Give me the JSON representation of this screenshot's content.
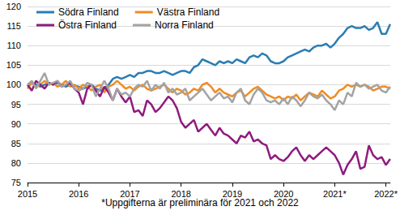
{
  "chart_data": {
    "type": "line",
    "annotation": "*Uppgifterna är preliminära för 2021 och 2022",
    "categories": [
      "2015",
      null,
      null,
      null,
      null,
      null,
      null,
      null,
      null,
      null,
      null,
      null,
      "2016",
      null,
      null,
      null,
      null,
      null,
      null,
      null,
      null,
      null,
      null,
      null,
      "2017",
      null,
      null,
      null,
      null,
      null,
      null,
      null,
      null,
      null,
      null,
      null,
      "2018",
      null,
      null,
      null,
      null,
      null,
      null,
      null,
      null,
      null,
      null,
      null,
      "2019",
      null,
      null,
      null,
      null,
      null,
      null,
      null,
      null,
      null,
      null,
      null,
      "2020",
      null,
      null,
      null,
      null,
      null,
      null,
      null,
      null,
      null,
      null,
      null,
      "2021*",
      null,
      null,
      null,
      null,
      null,
      null,
      null,
      null,
      null,
      null,
      null,
      "2022*",
      null
    ],
    "series": [
      {
        "name": "Södra Finland",
        "color": "#2a7db4",
        "values": [
          100,
          100.5,
          100,
          99.5,
          100,
          100.5,
          100,
          100.5,
          100,
          99.5,
          100,
          99.8,
          99.5,
          99,
          99.5,
          100,
          99,
          98.5,
          99,
          100,
          101.5,
          102,
          101.5,
          102,
          102.5,
          102,
          103,
          103,
          103.5,
          103.5,
          103,
          103,
          103.5,
          103,
          102.5,
          103,
          103.5,
          103.5,
          103,
          104.5,
          105,
          106.5,
          106,
          105.5,
          105,
          106,
          105.5,
          106,
          105.5,
          106.5,
          106,
          105.5,
          107,
          107.5,
          107,
          108,
          107.5,
          106,
          105.5,
          105.5,
          106,
          107,
          107.5,
          108,
          108.5,
          109,
          108.5,
          109.5,
          110,
          110,
          110.5,
          109.5,
          110.5,
          112,
          113,
          114.5,
          115,
          114.5,
          114.5,
          115,
          114,
          114.5,
          116,
          113,
          113,
          115.5
        ]
      },
      {
        "name": "Västra Finland",
        "color": "#f08c24",
        "values": [
          99,
          100.5,
          99.5,
          100,
          101,
          100,
          100.5,
          99.5,
          100,
          101,
          99.5,
          100,
          99,
          100,
          99.5,
          98.5,
          99.5,
          100,
          98,
          99.5,
          100,
          101,
          100,
          99,
          99.5,
          98.5,
          99.5,
          100,
          99,
          98.5,
          99,
          99.5,
          100,
          99,
          98,
          99,
          98.5,
          97.5,
          98,
          99,
          98.5,
          100,
          100.5,
          99.5,
          98,
          99,
          98,
          97.5,
          97,
          98,
          98.5,
          97,
          98,
          99,
          99.5,
          98.5,
          97.5,
          97,
          96.5,
          97,
          96,
          97,
          96.5,
          97.5,
          96,
          97,
          98,
          97.5,
          97,
          98.5,
          97.5,
          96.5,
          97,
          98.5,
          99,
          100,
          99.5,
          100,
          99.5,
          100,
          99.5,
          98.5,
          99,
          99.5,
          99.5,
          99
        ]
      },
      {
        "name": "Östra Finland",
        "color": "#8e1b7e",
        "values": [
          100,
          98.5,
          101,
          100,
          99,
          100.5,
          100,
          101,
          99.5,
          100,
          100.5,
          99,
          98,
          95,
          99,
          100,
          98.5,
          97,
          99.5,
          98,
          96,
          99,
          97,
          95.5,
          97,
          93,
          93.5,
          92,
          96,
          95,
          93,
          94,
          95.5,
          97,
          96,
          94,
          90.5,
          89,
          90,
          91,
          88,
          89,
          90,
          88.5,
          87,
          89,
          87.5,
          87,
          86,
          85,
          87,
          86.5,
          88,
          85.5,
          86,
          85,
          84.5,
          81,
          82,
          81,
          80.5,
          81.5,
          83,
          84,
          82,
          80.5,
          82,
          81,
          82,
          83,
          84,
          83,
          82,
          80,
          77,
          79.5,
          81,
          83,
          78.5,
          79,
          84.5,
          82,
          81,
          81.5,
          79.5,
          81
        ]
      },
      {
        "name": "Norra Finland",
        "color": "#a3a3a3",
        "values": [
          100,
          101,
          99,
          101,
          103,
          100,
          100.5,
          101,
          99.5,
          100,
          101,
          99,
          98.5,
          99,
          100.5,
          100,
          97,
          99,
          101,
          99,
          96,
          99,
          97.5,
          98,
          97,
          99,
          100,
          99.5,
          101,
          98.5,
          100,
          99,
          100.5,
          98,
          99,
          97.5,
          98,
          99,
          96,
          97,
          98,
          99,
          97.5,
          96,
          97,
          98,
          96.5,
          97,
          95.5,
          98,
          99,
          96,
          95,
          97.5,
          99,
          98,
          96,
          95.5,
          96,
          95,
          96.5,
          95,
          97,
          96,
          94.5,
          96,
          98,
          97,
          96.5,
          97.5,
          96,
          95,
          93.5,
          96,
          95,
          98,
          97,
          100.5,
          99.5,
          100,
          99,
          99.5,
          100,
          98.5,
          98,
          99.5
        ]
      }
    ],
    "ylim": [
      75,
      120
    ],
    "yticks": [
      75,
      80,
      85,
      90,
      95,
      100,
      105,
      110,
      115,
      120
    ],
    "grid": true,
    "legend": "upper left"
  }
}
